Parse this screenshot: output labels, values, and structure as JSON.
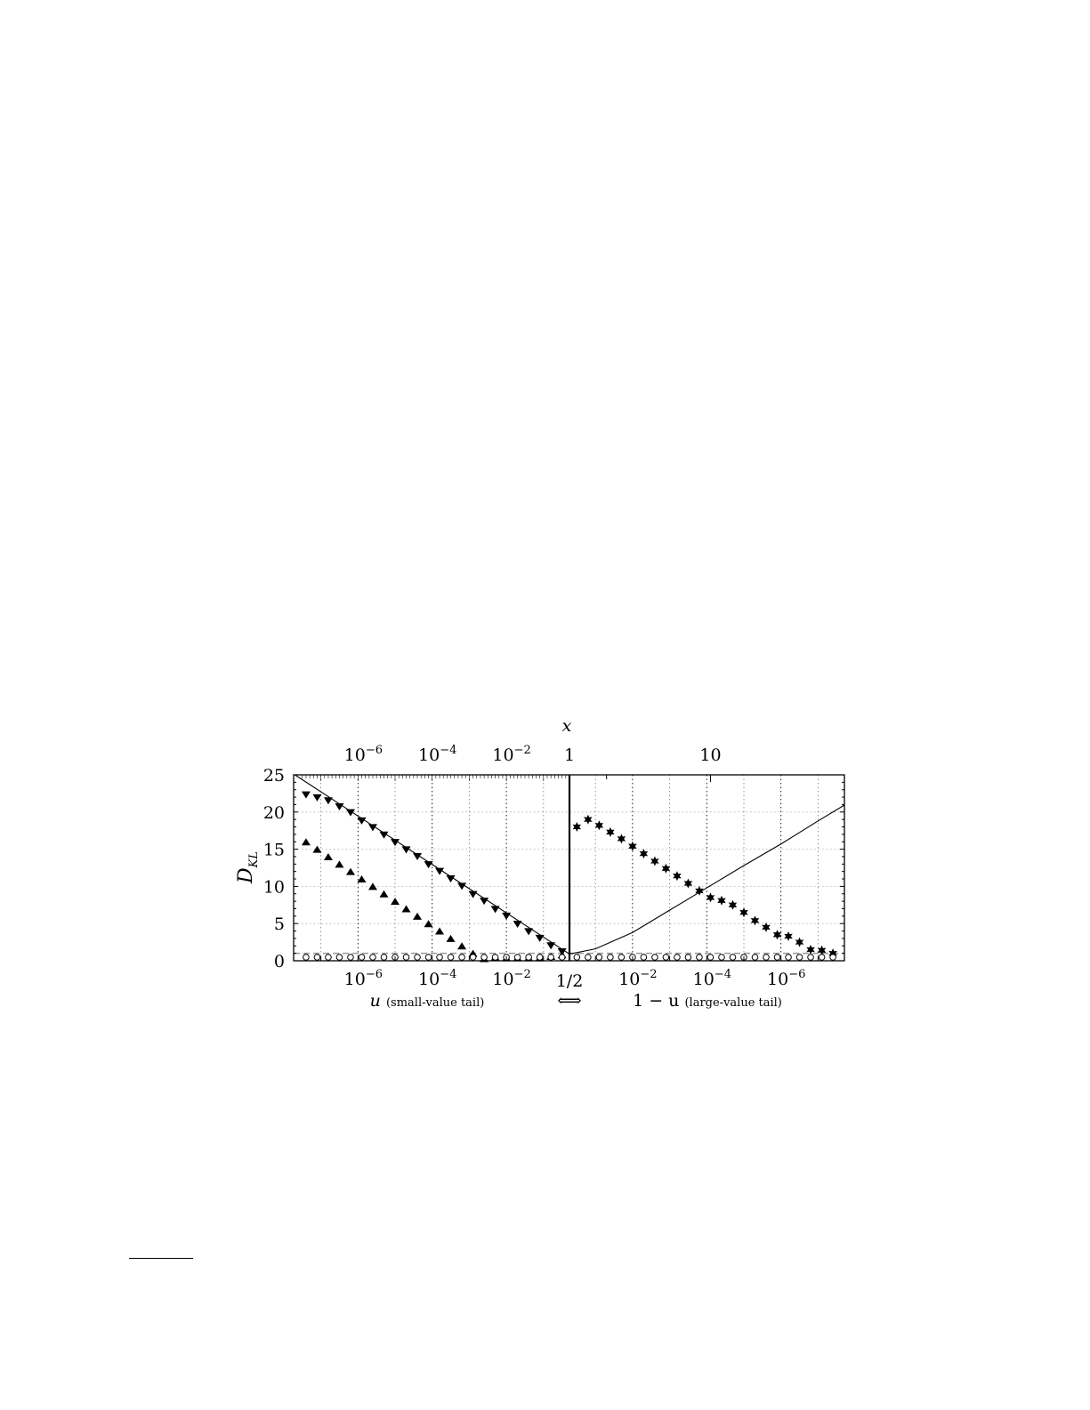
{
  "chart_data": {
    "type": "scatter",
    "title": "",
    "ylabel": "D_KL",
    "ylabel_main": "D",
    "ylabel_sub": "KL",
    "top_axis_label": "x",
    "ylim": [
      0,
      25
    ],
    "yticks": [
      "0",
      "5",
      "10",
      "15",
      "20",
      "25"
    ],
    "ytick_values": [
      0,
      5,
      10,
      15,
      20,
      25
    ],
    "x_scale": "log (two mirrored tails joined at 1/2)",
    "xlim_log10_tail": [
      -7.7,
      -0.3
    ],
    "bottom_ticks_left": [
      {
        "base": "10",
        "exp": "−6",
        "log10": -6
      },
      {
        "base": "10",
        "exp": "−4",
        "log10": -4
      },
      {
        "base": "10",
        "exp": "−2",
        "log10": -2
      }
    ],
    "bottom_center_tick": "1/2",
    "bottom_ticks_right": [
      {
        "base": "10",
        "exp": "−2",
        "log10": -2
      },
      {
        "base": "10",
        "exp": "−4",
        "log10": -4
      },
      {
        "base": "10",
        "exp": "−6",
        "log10": -6
      }
    ],
    "top_ticks": [
      {
        "base": "10",
        "exp": "−6",
        "side": "small",
        "log10": -6
      },
      {
        "base": "10",
        "exp": "−4",
        "side": "small",
        "log10": -4
      },
      {
        "base": "10",
        "exp": "−2",
        "side": "small",
        "log10": -2
      },
      {
        "base": "1",
        "exp": "",
        "side": "center",
        "log10": -0.3
      },
      {
        "base": "10",
        "exp": "",
        "side": "large",
        "log10": -4.1
      }
    ],
    "xlabel_left": {
      "var": "u",
      "text": "(small-value tail)"
    },
    "xlabel_arrow": "⟺",
    "xlabel_right": {
      "var": "1 − u",
      "text": "(large-value tail)"
    },
    "grid": true,
    "reference_line": {
      "style": "dashed",
      "y": 1,
      "color": "#999999"
    },
    "center_divider": "1/2",
    "x_log10_tail": [
      -7.4,
      -7.1,
      -6.8,
      -6.5,
      -6.2,
      -5.9,
      -5.6,
      -5.3,
      -5.0,
      -4.7,
      -4.4,
      -4.1,
      -3.8,
      -3.5,
      -3.2,
      -2.9,
      -2.6,
      -2.3,
      -2.0,
      -1.7,
      -1.4,
      -1.1,
      -0.8,
      -0.5
    ],
    "series": [
      {
        "marker": "triangle-down",
        "side": "small",
        "values": [
          22.3,
          21.9,
          21.5,
          20.7,
          19.9,
          18.8,
          17.9,
          16.9,
          15.9,
          14.9,
          14.0,
          12.9,
          12.0,
          11.0,
          10.0,
          8.9,
          8.0,
          6.9,
          6.0,
          4.9,
          3.9,
          3.0,
          2.0,
          1.2
        ]
      },
      {
        "marker": "triangle-up",
        "side": "small",
        "values": [
          16.0,
          15.0,
          14.0,
          13.0,
          12.0,
          11.0,
          10.0,
          9.0,
          8.0,
          7.0,
          6.0,
          5.0,
          4.0,
          3.0,
          2.0,
          1.0,
          0.3,
          0.5,
          0.4,
          0.4,
          0.4,
          0.4,
          0.6,
          0.8
        ]
      },
      {
        "marker": "star",
        "side": "large",
        "values": [
          1.0,
          1.4,
          1.5,
          2.5,
          3.3,
          3.5,
          4.5,
          5.4,
          6.5,
          7.5,
          8.1,
          8.5,
          9.4,
          10.4,
          11.4,
          12.4,
          13.4,
          14.4,
          15.4,
          16.4,
          17.3,
          18.2,
          19.0,
          18.0
        ]
      },
      {
        "marker": "circle-open",
        "side": "small",
        "values": [
          0,
          0,
          0,
          0,
          0,
          0,
          0,
          0,
          0,
          0,
          0,
          0,
          0,
          0,
          0,
          0,
          0,
          0,
          0,
          0,
          0,
          0,
          0,
          0
        ]
      },
      {
        "marker": "circle-open",
        "side": "large",
        "values": [
          0,
          0,
          0,
          0,
          0,
          0,
          0,
          0,
          0,
          0,
          0,
          0,
          0,
          0,
          0,
          0,
          0,
          0,
          0,
          0,
          0,
          0,
          0,
          0
        ]
      }
    ],
    "curve": {
      "style": "solid",
      "small": [
        [
          -7.7,
          25.0
        ],
        [
          -0.3,
          0.9
        ]
      ],
      "large": [
        [
          -0.3,
          0.9
        ],
        [
          -1.0,
          1.6
        ],
        [
          -2.0,
          3.8
        ],
        [
          -3.0,
          6.8
        ],
        [
          -4.0,
          9.8
        ],
        [
          -5.0,
          12.8
        ],
        [
          -6.0,
          15.7
        ],
        [
          -7.0,
          18.8
        ],
        [
          -7.7,
          20.9
        ]
      ]
    }
  }
}
